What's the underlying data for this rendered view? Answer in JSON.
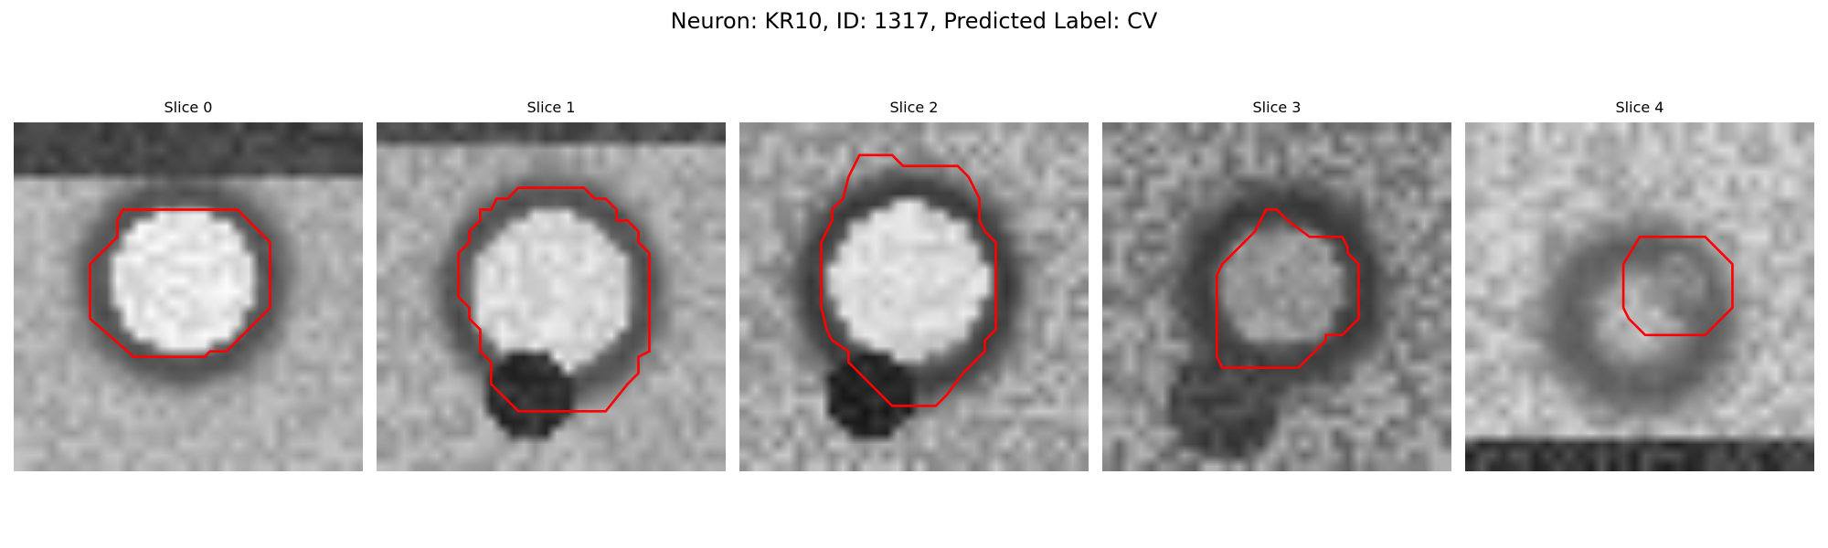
{
  "figure": {
    "title": "Neuron: KR10, ID: 1317, Predicted Label: CV"
  },
  "panels": [
    {
      "title": "Slice 0"
    },
    {
      "title": "Slice 1"
    },
    {
      "title": "Slice 2"
    },
    {
      "title": "Slice 3"
    },
    {
      "title": "Slice 4"
    }
  ],
  "colors": {
    "contour": "#ff0000",
    "background": "#ffffff"
  }
}
